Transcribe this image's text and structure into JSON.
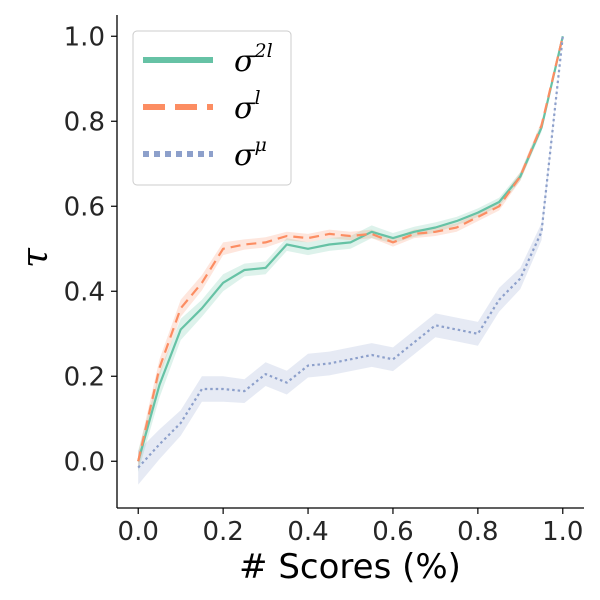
{
  "chart_data": {
    "type": "line",
    "title": "",
    "xlabel": "# Scores (%)",
    "ylabel": "τ",
    "xlim": [
      -0.05,
      1.05
    ],
    "ylim": [
      -0.11,
      1.05
    ],
    "xticks": [
      0.0,
      0.2,
      0.4,
      0.6,
      0.8,
      1.0
    ],
    "xtick_labels": [
      "0.0",
      "0.2",
      "0.4",
      "0.6",
      "0.8",
      "1.0"
    ],
    "yticks": [
      0.0,
      0.2,
      0.4,
      0.6,
      0.8,
      1.0
    ],
    "ytick_labels": [
      "0.0",
      "0.2",
      "0.4",
      "0.6",
      "0.8",
      "1.0"
    ],
    "grid": false,
    "legend_position": "top-left",
    "x": [
      0.0,
      0.05,
      0.1,
      0.15,
      0.2,
      0.25,
      0.3,
      0.35,
      0.4,
      0.45,
      0.5,
      0.55,
      0.6,
      0.65,
      0.7,
      0.75,
      0.8,
      0.85,
      0.9,
      0.95,
      1.0
    ],
    "series": [
      {
        "name": "σ2l",
        "label_base": "σ",
        "label_sup": "2l",
        "color": "#66c2a5",
        "style": "solid",
        "values": [
          0.0,
          0.18,
          0.31,
          0.36,
          0.42,
          0.45,
          0.455,
          0.51,
          0.5,
          0.51,
          0.515,
          0.54,
          0.525,
          0.54,
          0.55,
          0.565,
          0.585,
          0.61,
          0.67,
          0.785,
          1.0
        ],
        "band": [
          0.025,
          0.03,
          0.025,
          0.02,
          0.02,
          0.015,
          0.015,
          0.015,
          0.015,
          0.015,
          0.015,
          0.015,
          0.012,
          0.012,
          0.012,
          0.01,
          0.01,
          0.01,
          0.01,
          0.01,
          0.0
        ]
      },
      {
        "name": "σl",
        "label_base": "σ",
        "label_sup": "l",
        "color": "#fc8d62",
        "style": "dashed",
        "values": [
          0.0,
          0.22,
          0.36,
          0.42,
          0.5,
          0.51,
          0.515,
          0.53,
          0.525,
          0.535,
          0.53,
          0.535,
          0.515,
          0.535,
          0.54,
          0.55,
          0.575,
          0.6,
          0.67,
          0.79,
          1.0
        ],
        "band": [
          0.02,
          0.02,
          0.02,
          0.018,
          0.015,
          0.012,
          0.012,
          0.01,
          0.01,
          0.01,
          0.01,
          0.01,
          0.01,
          0.01,
          0.01,
          0.01,
          0.01,
          0.01,
          0.01,
          0.01,
          0.0
        ]
      },
      {
        "name": "σμ",
        "label_base": "σ",
        "label_sup": "μ",
        "color": "#8da0cb",
        "style": "dotted",
        "values": [
          -0.015,
          0.04,
          0.09,
          0.17,
          0.17,
          0.165,
          0.205,
          0.185,
          0.225,
          0.23,
          0.24,
          0.25,
          0.24,
          0.28,
          0.32,
          0.31,
          0.3,
          0.38,
          0.43,
          0.54,
          1.0
        ],
        "band": [
          0.04,
          0.035,
          0.03,
          0.03,
          0.03,
          0.028,
          0.028,
          0.028,
          0.028,
          0.028,
          0.028,
          0.028,
          0.028,
          0.028,
          0.028,
          0.028,
          0.028,
          0.028,
          0.025,
          0.02,
          0.0
        ]
      }
    ]
  }
}
